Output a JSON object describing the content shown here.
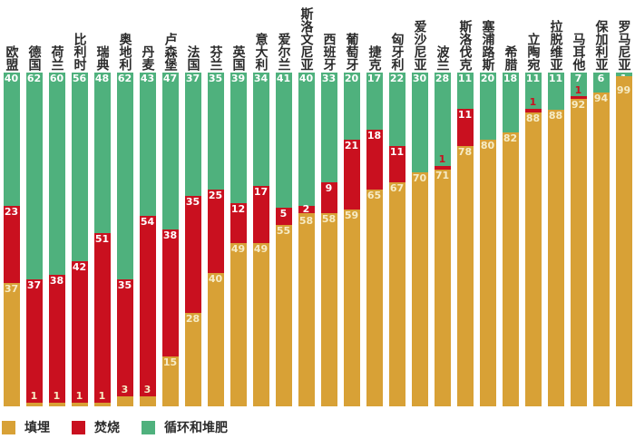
{
  "chart_data": {
    "type": "bar",
    "stacked": true,
    "title": "",
    "xlabel": "",
    "ylabel": "",
    "ylim": [
      0,
      100
    ],
    "grid": false,
    "legend_position": "bottom-left",
    "segment_order_top_to_bottom": [
      "循环和堆肥",
      "焚烧",
      "填埋"
    ],
    "categories": [
      "欧盟",
      "德国",
      "荷兰",
      "比利时",
      "瑞典",
      "奥地利",
      "丹麦",
      "卢森堡",
      "法国",
      "芬兰",
      "英国",
      "意大利",
      "爱尔兰",
      "斯洛文尼亚",
      "西班牙",
      "葡萄牙",
      "捷克",
      "匈牙利",
      "爱沙尼亚",
      "波兰",
      "斯洛伐克",
      "塞浦路斯",
      "希腊",
      "立陶宛",
      "拉脱维亚",
      "马耳他",
      "保加利亚",
      "罗马尼亚"
    ],
    "series": [
      {
        "name": "填埋",
        "color": "#D8A136",
        "label_color": "#F6ECC6",
        "values": [
          37,
          1,
          1,
          1,
          1,
          3,
          3,
          15,
          28,
          40,
          49,
          49,
          55,
          58,
          58,
          59,
          65,
          67,
          70,
          71,
          78,
          80,
          82,
          88,
          88,
          92,
          94,
          99
        ]
      },
      {
        "name": "焚烧",
        "color": "#C9101F",
        "label_color": "#FFFFFF",
        "values": [
          23,
          37,
          38,
          42,
          51,
          35,
          54,
          38,
          35,
          25,
          12,
          17,
          5,
          2,
          9,
          21,
          18,
          11,
          0,
          1,
          11,
          0,
          0,
          1,
          0,
          1,
          0,
          0
        ]
      },
      {
        "name": "循环和堆肥",
        "color": "#4FB17D",
        "label_color": "#FFFFFF",
        "values": [
          40,
          62,
          60,
          56,
          48,
          62,
          43,
          47,
          37,
          35,
          39,
          34,
          41,
          40,
          33,
          20,
          17,
          22,
          30,
          28,
          11,
          20,
          18,
          11,
          11,
          7,
          6,
          1
        ]
      }
    ],
    "legend": [
      "填埋",
      "焚烧",
      "循环和堆肥"
    ]
  }
}
